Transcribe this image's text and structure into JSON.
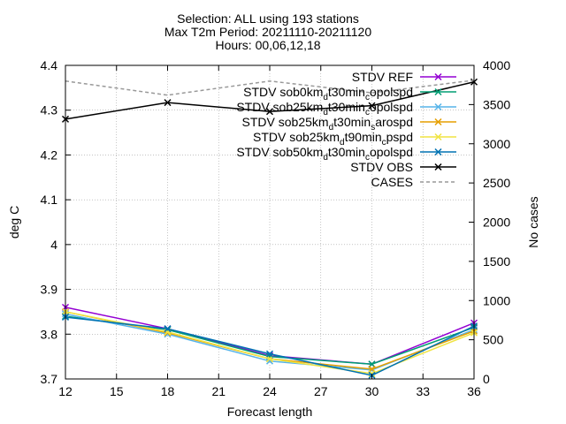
{
  "chart_data": {
    "type": "line",
    "title": [
      "Selection: ALL using   193 stations",
      "Max T2m   Period: 20211110-20211120",
      "Hours: 00,06,12,18"
    ],
    "xlabel": "Forecast length",
    "ylabel": "deg C",
    "y2label": "No cases",
    "x": [
      12,
      18,
      24,
      30,
      36
    ],
    "xlim": [
      12,
      36
    ],
    "xticks": [
      12,
      15,
      18,
      21,
      24,
      27,
      30,
      33,
      36
    ],
    "ylim": [
      3.7,
      4.4
    ],
    "yticks": [
      "3.7",
      "3.8",
      "3.9",
      "4",
      "4.1",
      "4.2",
      "4.3",
      "4.4"
    ],
    "y2lim": [
      0,
      4000
    ],
    "y2ticks": [
      "0",
      "500",
      "1000",
      "1500",
      "2000",
      "2500",
      "3000",
      "3500",
      "4000"
    ],
    "grid": true,
    "legend_position": "top-right",
    "series": [
      {
        "name": "STDV REF",
        "legend_parts": [
          [
            "STDV REF",
            ""
          ]
        ],
        "color": "#9400d3",
        "marker": "x",
        "axis": "y",
        "values": [
          3.86,
          3.812,
          3.752,
          3.733,
          3.825
        ]
      },
      {
        "name": "STDV sob0km_d t30min_c opolspd",
        "legend_parts": [
          [
            "STDV sob0km",
            ""
          ],
          [
            "d",
            "sub"
          ],
          [
            "t30min",
            ""
          ],
          [
            "c",
            "sub"
          ],
          [
            "opolspd",
            ""
          ]
        ],
        "color": "#009e73",
        "marker": "x",
        "axis": "y",
        "values": [
          3.84,
          3.81,
          3.75,
          3.733,
          3.815
        ]
      },
      {
        "name": "STDV sob25km_d t30min_c opolspd",
        "legend_parts": [
          [
            "STDV sob25km",
            ""
          ],
          [
            "d",
            "sub"
          ],
          [
            "t30min",
            ""
          ],
          [
            "c",
            "sub"
          ],
          [
            "opolspd",
            ""
          ]
        ],
        "color": "#56b4e9",
        "marker": "x",
        "axis": "y",
        "values": [
          3.845,
          3.8,
          3.74,
          3.72,
          3.81
        ]
      },
      {
        "name": "STDV sob25km_d t30min_s arospd",
        "legend_parts": [
          [
            "STDV sob25km",
            ""
          ],
          [
            "d",
            "sub"
          ],
          [
            "t30min",
            ""
          ],
          [
            "s",
            "sub"
          ],
          [
            "arospd",
            ""
          ]
        ],
        "color": "#e69f00",
        "marker": "x",
        "axis": "y",
        "values": [
          3.85,
          3.803,
          3.745,
          3.722,
          3.807
        ]
      },
      {
        "name": "STDV sob25km_d t90min_c pspd",
        "legend_parts": [
          [
            "STDV sob25km",
            ""
          ],
          [
            "d",
            "sub"
          ],
          [
            "t90min",
            ""
          ],
          [
            "c",
            "sub"
          ],
          [
            "pspd",
            ""
          ]
        ],
        "color": "#f0e442",
        "marker": "x",
        "axis": "y",
        "values": [
          3.85,
          3.805,
          3.745,
          3.712,
          3.803
        ]
      },
      {
        "name": "STDV sob50km_d t30min_c opolspd",
        "legend_parts": [
          [
            "STDV sob50km",
            ""
          ],
          [
            "d",
            "sub"
          ],
          [
            "t30min",
            ""
          ],
          [
            "c",
            "sub"
          ],
          [
            "opolspd",
            ""
          ]
        ],
        "color": "#0072b2",
        "marker": "x",
        "axis": "y",
        "values": [
          3.838,
          3.812,
          3.756,
          3.708,
          3.818
        ]
      },
      {
        "name": "STDV OBS",
        "legend_parts": [
          [
            "STDV OBS",
            ""
          ]
        ],
        "color": "#000000",
        "marker": "x",
        "axis": "y",
        "values": [
          4.28,
          4.317,
          4.297,
          4.31,
          4.363
        ]
      },
      {
        "name": "CASES",
        "legend_parts": [
          [
            "CASES",
            ""
          ]
        ],
        "color": "#999999",
        "marker": "none",
        "dashed": true,
        "axis": "y2",
        "values": [
          3800,
          3620,
          3800,
          3650,
          3810
        ]
      }
    ]
  }
}
